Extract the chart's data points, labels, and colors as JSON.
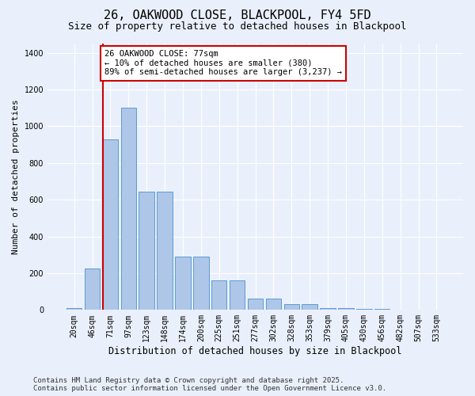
{
  "title": "26, OAKWOOD CLOSE, BLACKPOOL, FY4 5FD",
  "subtitle": "Size of property relative to detached houses in Blackpool",
  "xlabel": "Distribution of detached houses by size in Blackpool",
  "ylabel": "Number of detached properties",
  "footer": "Contains HM Land Registry data © Crown copyright and database right 2025.\nContains public sector information licensed under the Open Government Licence v3.0.",
  "categories": [
    "20sqm",
    "46sqm",
    "71sqm",
    "97sqm",
    "123sqm",
    "148sqm",
    "174sqm",
    "200sqm",
    "225sqm",
    "251sqm",
    "277sqm",
    "302sqm",
    "328sqm",
    "353sqm",
    "379sqm",
    "405sqm",
    "430sqm",
    "456sqm",
    "482sqm",
    "507sqm",
    "533sqm"
  ],
  "values": [
    10,
    225,
    930,
    1100,
    645,
    645,
    290,
    290,
    160,
    160,
    60,
    60,
    30,
    30,
    10,
    10,
    5,
    5,
    2,
    2,
    1
  ],
  "bar_color": "#aec6e8",
  "bar_edge_color": "#5b9bd5",
  "property_line_color": "#cc0000",
  "property_line_index": 2,
  "annotation_text": "26 OAKWOOD CLOSE: 77sqm\n← 10% of detached houses are smaller (380)\n89% of semi-detached houses are larger (3,237) →",
  "annotation_box_facecolor": "#ffffff",
  "annotation_box_edgecolor": "#cc0000",
  "ylim": [
    0,
    1450
  ],
  "yticks": [
    0,
    200,
    400,
    600,
    800,
    1000,
    1200,
    1400
  ],
  "bg_color": "#eaf0fb",
  "title_fontsize": 11,
  "subtitle_fontsize": 9,
  "xlabel_fontsize": 8.5,
  "ylabel_fontsize": 8,
  "tick_fontsize": 7,
  "footer_fontsize": 6.5
}
